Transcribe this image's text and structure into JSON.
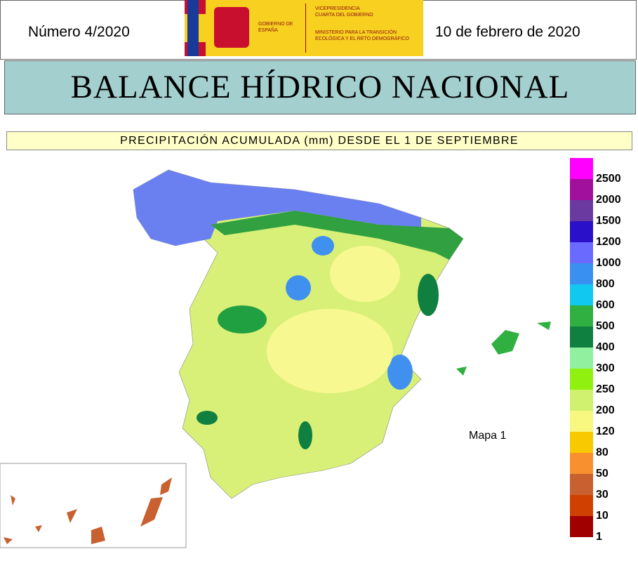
{
  "header": {
    "number": "Número 4/2020",
    "date": "10 de febrero de 2020",
    "logo": {
      "government": "GOBIERNO DE ESPAÑA",
      "vicepresidency": "VICEPRESIDENCIA CUARTA DEL GOBIERNO",
      "ministry": "MINISTERIO PARA LA TRANSICIÓN ECOLÓGICA Y EL RETO DEMOGRÁFICO"
    }
  },
  "title": "BALANCE HÍDRICO NACIONAL",
  "subtitle": "PRECIPITACIÓN ACUMULADA (mm) DESDE EL 1 DE SEPTIEMBRE",
  "map": {
    "label": "Mapa 1"
  },
  "legend": {
    "items": [
      {
        "label": "2500",
        "color": "#ff00ff"
      },
      {
        "label": "2000",
        "color": "#a0109a"
      },
      {
        "label": "1500",
        "color": "#6a3aa0"
      },
      {
        "label": "1200",
        "color": "#2a10c8"
      },
      {
        "label": "1000",
        "color": "#6a6aff"
      },
      {
        "label": "800",
        "color": "#3a90f0"
      },
      {
        "label": "600",
        "color": "#10c8f0"
      },
      {
        "label": "500",
        "color": "#30b040"
      },
      {
        "label": "400",
        "color": "#108040"
      },
      {
        "label": "300",
        "color": "#90f0a0"
      },
      {
        "label": "250",
        "color": "#90f010"
      },
      {
        "label": "200",
        "color": "#d0f070"
      },
      {
        "label": "120",
        "color": "#f8f880"
      },
      {
        "label": "80",
        "color": "#f8c800"
      },
      {
        "label": "50",
        "color": "#f89030"
      },
      {
        "label": "30",
        "color": "#c86030"
      },
      {
        "label": "10",
        "color": "#d04000"
      },
      {
        "label": "1",
        "color": "#a00000"
      }
    ]
  }
}
